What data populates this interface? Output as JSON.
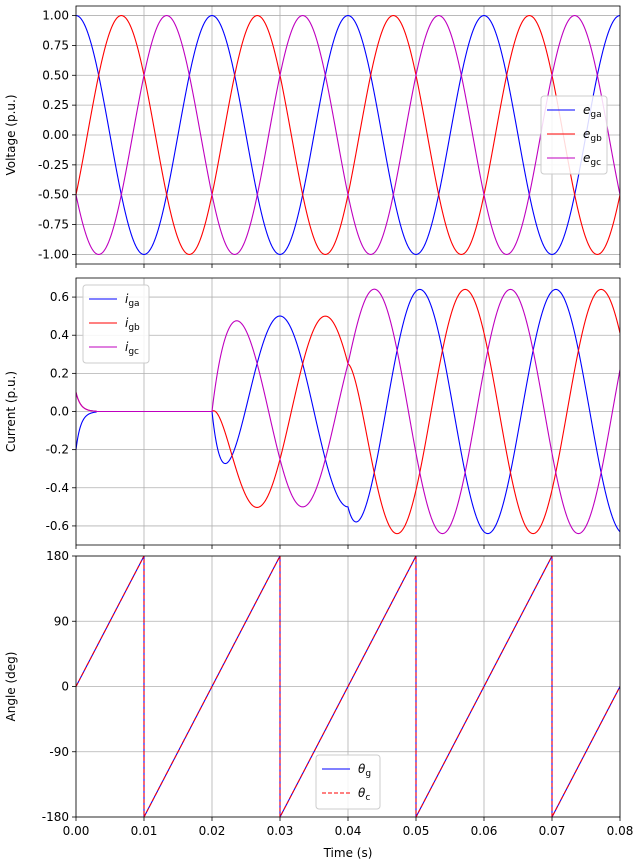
{
  "chart_data": [
    {
      "type": "line",
      "panel": "voltage",
      "ylabel": "Voltage (p.u.)",
      "xlim": [
        0,
        0.08
      ],
      "ylim": [
        -1.08,
        1.08
      ],
      "yticks": [
        "-1.00",
        "-0.75",
        "-0.50",
        "-0.25",
        "0.00",
        "0.25",
        "0.50",
        "0.75",
        "1.00"
      ],
      "ytick_values": [
        -1.0,
        -0.75,
        -0.5,
        -0.25,
        0.0,
        0.25,
        0.5,
        0.75,
        1.0
      ],
      "grid": true,
      "legend": "center-right",
      "frequency_hz": 50,
      "series": [
        {
          "name": "e",
          "sub": "ga",
          "color": "#0000ff",
          "amplitude": 1.0,
          "phase_deg": 0
        },
        {
          "name": "e",
          "sub": "gb",
          "color": "#ff0000",
          "amplitude": 1.0,
          "phase_deg": -120
        },
        {
          "name": "e",
          "sub": "gc",
          "color": "#bf00bf",
          "amplitude": 1.0,
          "phase_deg": 120
        }
      ]
    },
    {
      "type": "line",
      "panel": "current",
      "ylabel": "Current (p.u.)",
      "xlim": [
        0,
        0.08
      ],
      "ylim": [
        -0.7,
        0.7
      ],
      "yticks": [
        "-0.6",
        "-0.4",
        "-0.2",
        "0.0",
        "0.2",
        "0.4",
        "0.6"
      ],
      "ytick_values": [
        -0.6,
        -0.4,
        -0.2,
        0.0,
        0.2,
        0.4,
        0.6
      ],
      "grid": true,
      "legend": "top-left",
      "segments": [
        {
          "t_start": 0.0,
          "t_end": 0.003,
          "description": "initial transient decaying to zero",
          "ia0": -0.2,
          "ib0": 0.1,
          "ic0": 0.1
        },
        {
          "t_start": 0.003,
          "t_end": 0.02,
          "amplitude": 0.0
        },
        {
          "t_start": 0.02,
          "t_end": 0.04,
          "amplitude": 0.5,
          "phase_a_deg": -90
        },
        {
          "t_start": 0.04,
          "t_end": 0.08,
          "amplitude": 0.64,
          "phase_a_deg": -100
        }
      ],
      "series": [
        {
          "name": "i",
          "sub": "ga",
          "color": "#0000ff"
        },
        {
          "name": "i",
          "sub": "gb",
          "color": "#ff0000"
        },
        {
          "name": "i",
          "sub": "gc",
          "color": "#bf00bf"
        }
      ]
    },
    {
      "type": "line",
      "panel": "angle",
      "ylabel": "Angle (deg)",
      "xlabel": "Time (s)",
      "xlim": [
        0,
        0.08
      ],
      "ylim": [
        -180,
        180
      ],
      "yticks": [
        "-180",
        "-90",
        "0",
        "90",
        "180"
      ],
      "ytick_values": [
        -180,
        -90,
        0,
        90,
        180
      ],
      "xticks": [
        "0.00",
        "0.01",
        "0.02",
        "0.03",
        "0.04",
        "0.05",
        "0.06",
        "0.07",
        "0.08"
      ],
      "xtick_values": [
        0.0,
        0.01,
        0.02,
        0.03,
        0.04,
        0.05,
        0.06,
        0.07,
        0.08
      ],
      "grid": true,
      "legend": "bottom-center",
      "series": [
        {
          "name": "θ",
          "sub": "g",
          "color": "#0000ff",
          "style": "solid"
        },
        {
          "name": "θ",
          "sub": "c",
          "color": "#ff0000",
          "style": "dashed"
        }
      ]
    }
  ]
}
